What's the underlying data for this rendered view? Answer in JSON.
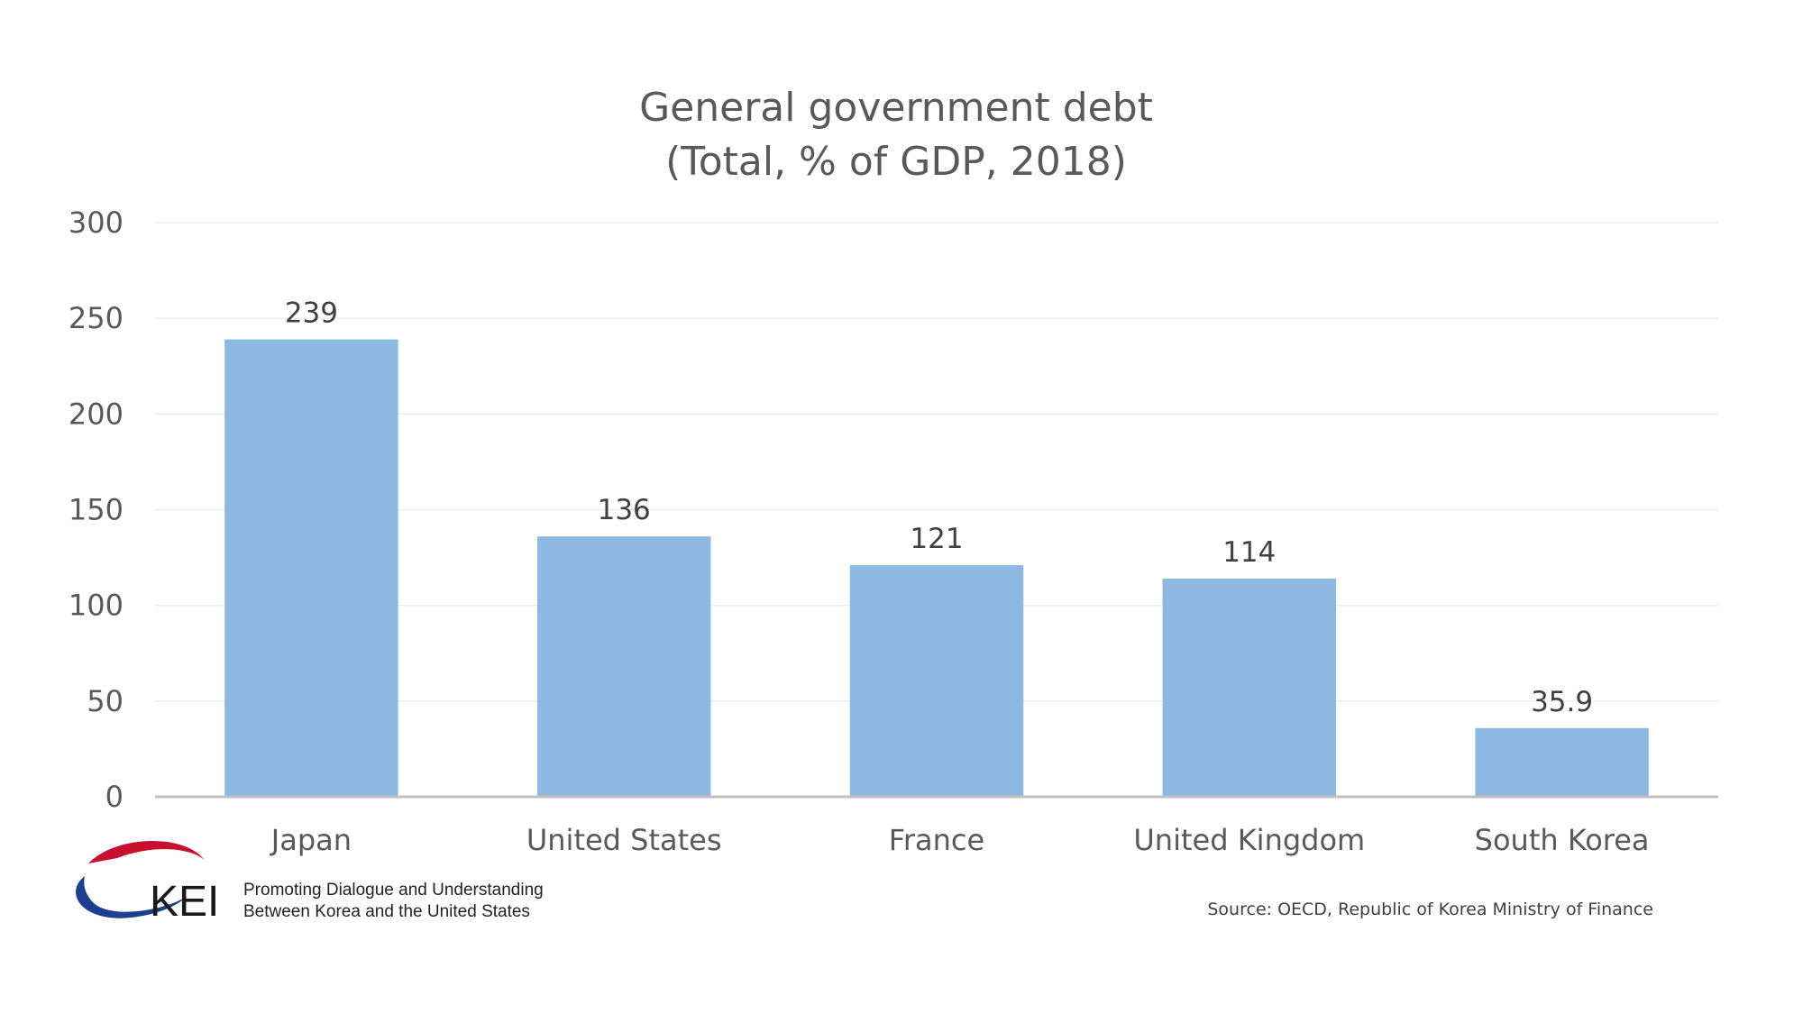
{
  "chart_data": {
    "type": "bar",
    "title": "General government debt",
    "subtitle": "(Total, % of GDP, 2018)",
    "categories": [
      "Japan",
      "United States",
      "France",
      "United Kingdom",
      "South Korea"
    ],
    "values": [
      239,
      136,
      121,
      114,
      35.9
    ],
    "data_labels": [
      "239",
      "136",
      "121",
      "114",
      "35.9"
    ],
    "ylim": [
      0,
      300
    ],
    "yticks": [
      0,
      50,
      100,
      150,
      200,
      250,
      300
    ],
    "grid": true,
    "legend": "none",
    "colors": {
      "bar": "#8db8e1",
      "text": "#595959",
      "axis": "#bfbfbf"
    }
  },
  "branding": {
    "logo_text": "KEI",
    "tagline_line1": "Promoting Dialogue and Understanding",
    "tagline_line2": "Between Korea and the United States",
    "logo_colors": {
      "red": "#c8102e",
      "blue": "#1e3f8f"
    }
  },
  "source_note": "Source: OECD, Republic of Korea Ministry of Finance"
}
